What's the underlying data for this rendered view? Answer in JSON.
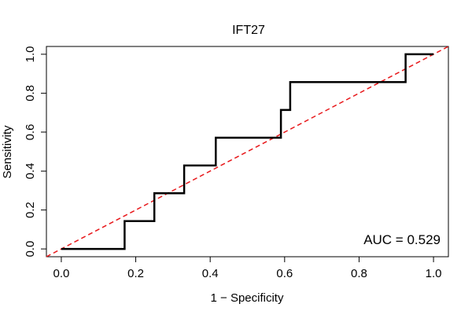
{
  "chart_data": {
    "type": "line",
    "title": "IFT27",
    "xlabel": "1 − Specificity",
    "ylabel": "Sensitivity",
    "xlim": [
      -0.04,
      1.04
    ],
    "ylim": [
      -0.04,
      1.04
    ],
    "x_ticks": [
      0.0,
      0.2,
      0.4,
      0.6,
      0.8,
      1.0
    ],
    "x_tick_labels": [
      "0.0",
      "0.2",
      "0.4",
      "0.6",
      "0.8",
      "1.0"
    ],
    "y_ticks": [
      0.0,
      0.2,
      0.4,
      0.6,
      0.8,
      1.0
    ],
    "y_tick_labels": [
      "0.0",
      "0.2",
      "0.4",
      "0.6",
      "0.8",
      "1.0"
    ],
    "grid": false,
    "annotation": "AUC = 0.529",
    "series": [
      {
        "style": "step",
        "color": "#000000",
        "x": [
          0.0,
          0.17,
          0.17,
          0.25,
          0.25,
          0.33,
          0.33,
          0.415,
          0.415,
          0.59,
          0.59,
          0.615,
          0.615,
          0.925,
          0.925,
          1.0
        ],
        "y": [
          0.0,
          0.0,
          0.143,
          0.143,
          0.286,
          0.286,
          0.429,
          0.429,
          0.571,
          0.571,
          0.714,
          0.714,
          0.857,
          0.857,
          1.0,
          1.0
        ]
      }
    ],
    "reference_line": {
      "x": [
        0,
        1
      ],
      "y": [
        0,
        1
      ],
      "color": "#e8191c",
      "style": "dashed"
    }
  }
}
